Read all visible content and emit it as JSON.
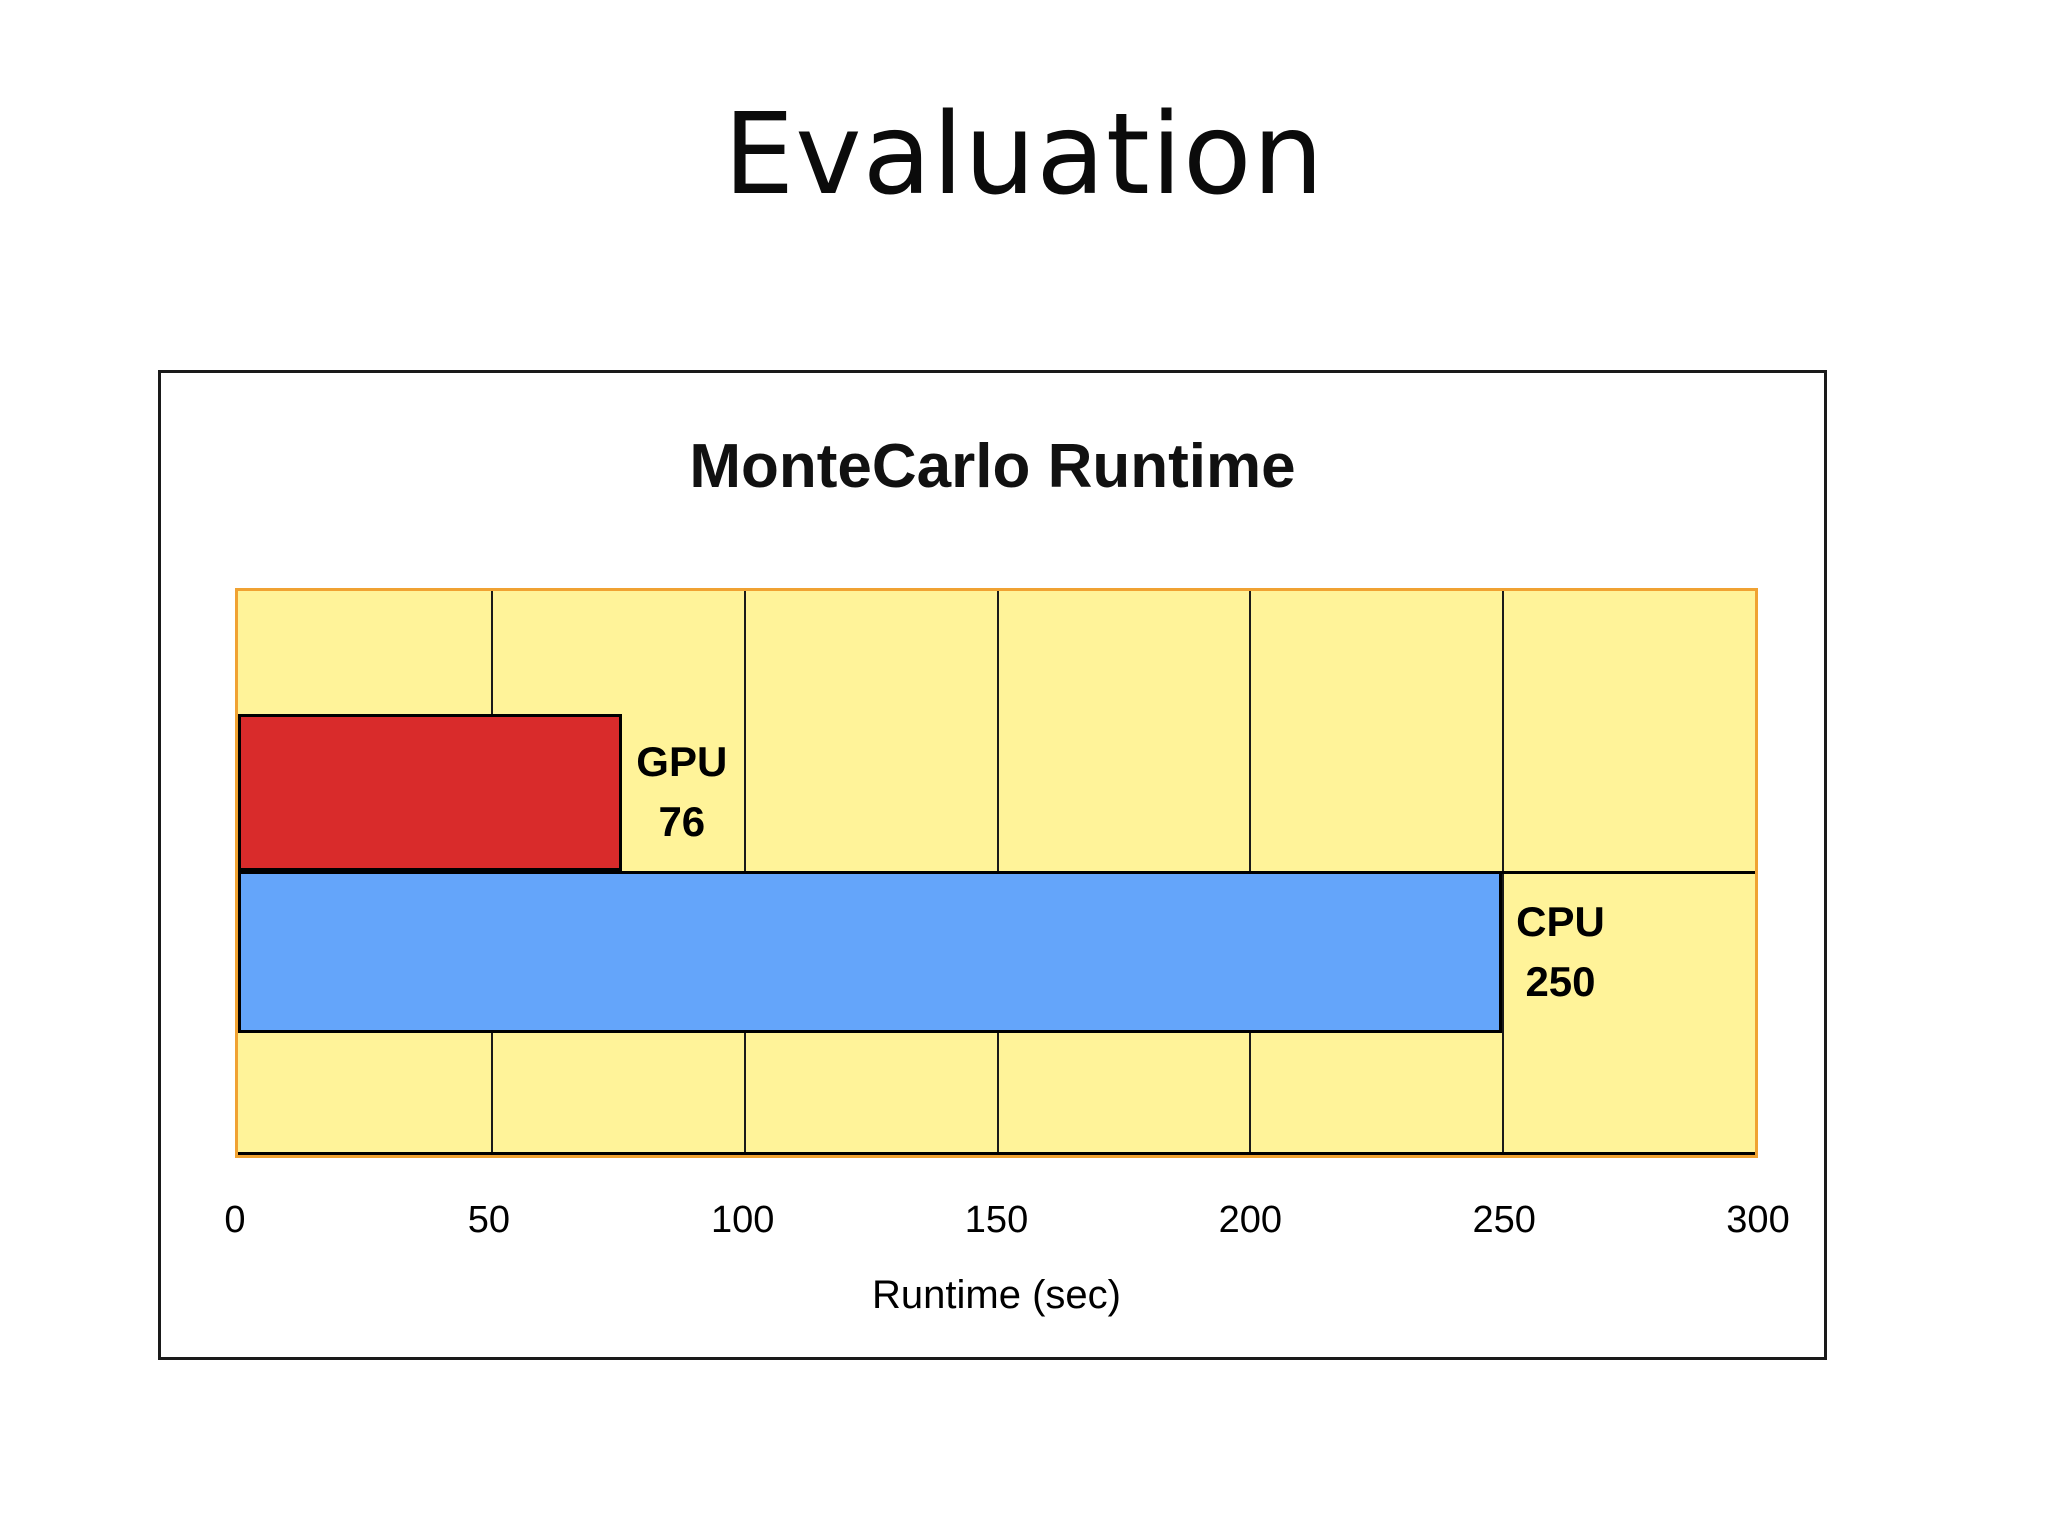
{
  "slide": {
    "title": "Evaluation"
  },
  "chart_data": {
    "type": "bar",
    "orientation": "horizontal",
    "title": "MonteCarlo Runtime",
    "xlabel": "Runtime (sec)",
    "categories": [
      "GPU",
      "CPU"
    ],
    "values": [
      76,
      250
    ],
    "bars": [
      {
        "label": "GPU",
        "value": 76,
        "value_text": "76",
        "color": "#d92b2b"
      },
      {
        "label": "CPU",
        "value": 250,
        "value_text": "250",
        "color": "#64a5fa"
      }
    ],
    "xlim": [
      0,
      300
    ],
    "x_ticks": [
      0,
      50,
      100,
      150,
      200,
      250,
      300
    ],
    "grid": true,
    "legend": "none",
    "plot_bg_color": "#fff399",
    "plot_border_color": "#f0a232",
    "gridline_color": "#1a1a1a"
  }
}
